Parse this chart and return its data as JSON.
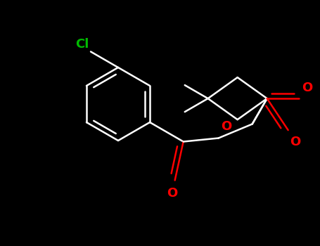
{
  "background_color": "#000000",
  "bond_color": "#ffffff",
  "cl_color": "#00bb00",
  "o_color": "#ff0000",
  "bond_width": 1.8,
  "figsize": [
    4.55,
    3.5
  ],
  "dpi": 100,
  "xlim": [
    0,
    455
  ],
  "ylim": [
    0,
    350
  ]
}
